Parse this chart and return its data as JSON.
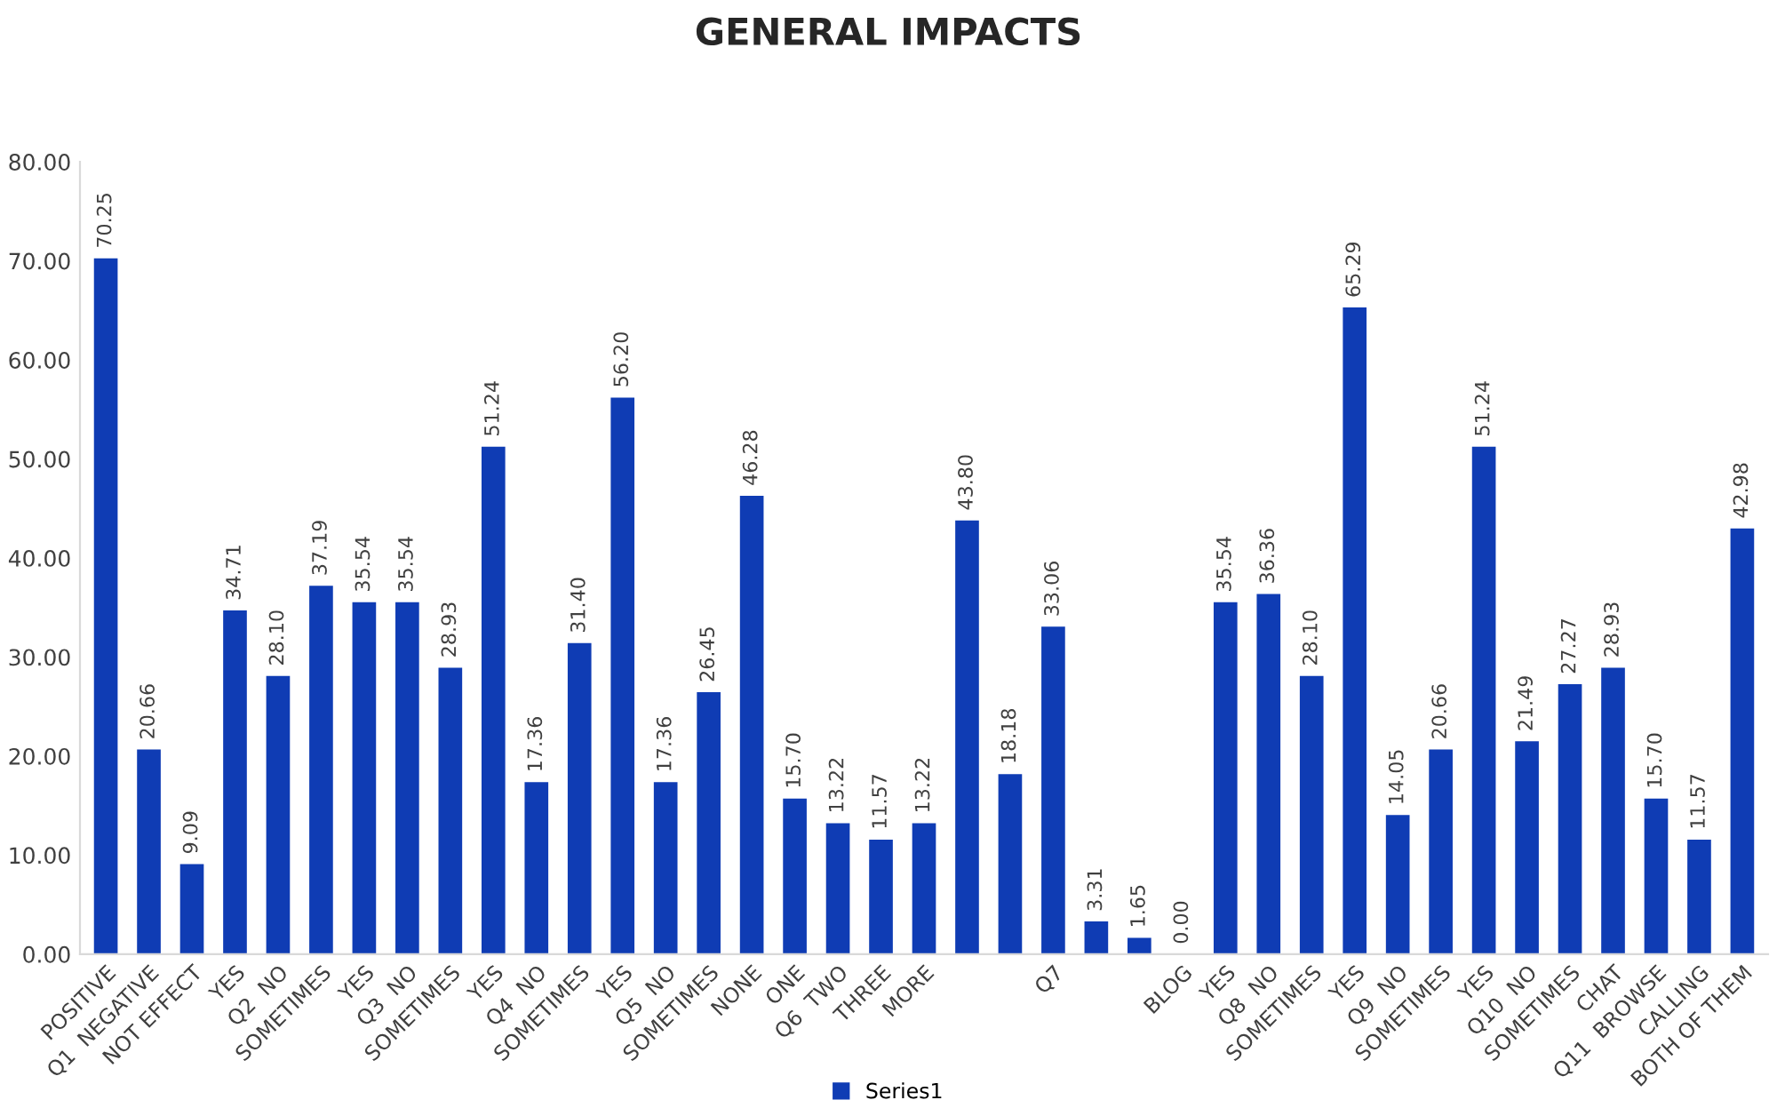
{
  "chart_data": {
    "type": "bar",
    "title": "GENERAL IMPACTS",
    "categories": [
      "POSITIVE",
      "Q1  NEGATIVE",
      "NOT EFFECT",
      "YES",
      "Q2  NO",
      "SOMETIMES",
      "YES",
      "Q3  NO",
      "SOMETIMES",
      "YES",
      "Q4  NO",
      "SOMETIMES",
      "YES",
      "Q5  NO",
      "SOMETIMES",
      "NONE",
      "ONE",
      "Q6  TWO",
      "THREE",
      "MORE",
      null,
      null,
      "Q7",
      null,
      null,
      "BLOG",
      "YES",
      "Q8  NO",
      "SOMETIMES",
      "YES",
      "Q9  NO",
      "SOMETIMES",
      "YES",
      "Q10  NO",
      "SOMETIMES",
      "CHAT",
      "Q11  BROWSE",
      "CALLING",
      "BOTH OF THEM"
    ],
    "series": [
      {
        "name": "Series1",
        "color": "#0f3cb4",
        "values": [
          70.25,
          20.66,
          9.09,
          34.71,
          28.1,
          37.19,
          35.54,
          35.54,
          28.93,
          51.24,
          17.36,
          31.4,
          56.2,
          17.36,
          26.45,
          46.28,
          15.7,
          13.22,
          11.57,
          13.22,
          43.8,
          18.18,
          33.06,
          3.31,
          1.65,
          0.0,
          35.54,
          36.36,
          28.1,
          65.29,
          14.05,
          20.66,
          51.24,
          21.49,
          27.27,
          28.93,
          15.7,
          11.57,
          42.98
        ],
        "value_labels": [
          "70.25",
          "20.66",
          "9.09",
          "34.71",
          "28.10",
          "37.19",
          "35.54",
          "35.54",
          "28.93",
          "51.24",
          "17.36",
          "31.40",
          "56.20",
          "17.36",
          "26.45",
          "46.28",
          "15.70",
          "13.22",
          "11.57",
          "13.22",
          "43.80",
          "18.18",
          "33.06",
          "3.31",
          "1.65",
          "0.00",
          "35.54",
          "36.36",
          "28.10",
          "65.29",
          "14.05",
          "20.66",
          "51.24",
          "21.49",
          "27.27",
          "28.93",
          "15.70",
          "11.57",
          "42.98"
        ]
      }
    ],
    "ylim": [
      0,
      80
    ],
    "yticks": [
      {
        "value": 0,
        "label": "0.00"
      },
      {
        "value": 10,
        "label": "10.00"
      },
      {
        "value": 20,
        "label": "20.00"
      },
      {
        "value": 30,
        "label": "30.00"
      },
      {
        "value": 40,
        "label": "40.00"
      },
      {
        "value": 50,
        "label": "50.00"
      },
      {
        "value": 60,
        "label": "60.00"
      },
      {
        "value": 70,
        "label": "70.00"
      },
      {
        "value": 80,
        "label": "80.00"
      }
    ],
    "grid": false,
    "legend": "bottom"
  }
}
